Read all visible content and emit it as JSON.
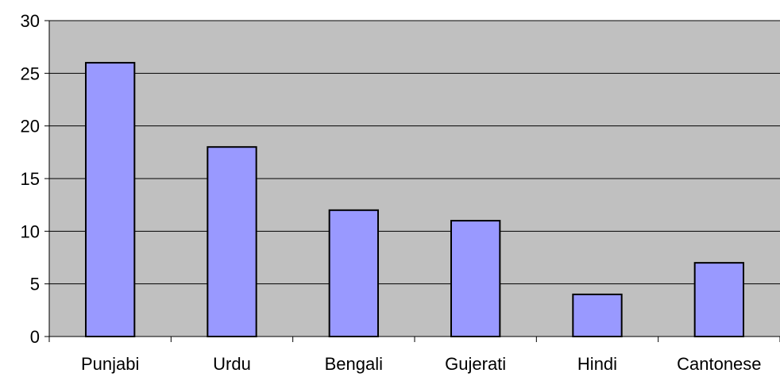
{
  "chart_data": {
    "type": "bar",
    "title": "",
    "xlabel": "",
    "ylabel": "",
    "categories": [
      "Punjabi",
      "Urdu",
      "Bengali",
      "Gujerati",
      "Hindi",
      "Cantonese"
    ],
    "values": [
      26,
      18,
      12,
      11,
      4,
      7
    ],
    "ylim": [
      0,
      30
    ],
    "yticks": [
      "0",
      "5",
      "10",
      "15",
      "20",
      "25",
      "30"
    ],
    "grid": true,
    "legend": "none",
    "colors": {
      "bar_fill": "#9999ff",
      "bar_stroke": "#000000",
      "plot_background": "#c0c0c0",
      "gridline": "#000000"
    }
  }
}
